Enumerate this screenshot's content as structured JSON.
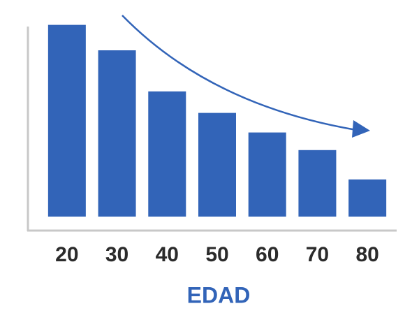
{
  "chart_data": {
    "type": "bar",
    "x_label": "EDAD",
    "categories": [
      "20",
      "30",
      "40",
      "50",
      "60",
      "70",
      "80"
    ],
    "values": [
      98,
      85,
      64,
      53,
      43,
      34,
      19
    ],
    "color": "#3264b8",
    "ylim": [
      0,
      100
    ]
  }
}
